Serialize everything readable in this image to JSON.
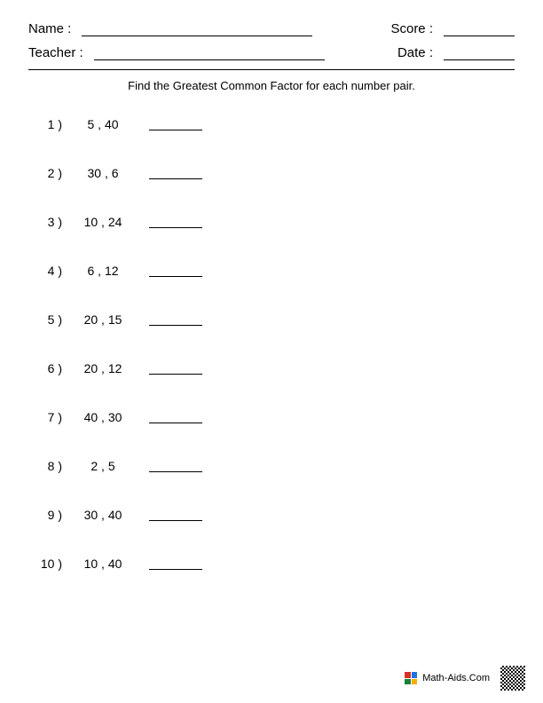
{
  "header": {
    "name_label": "Name :",
    "teacher_label": "Teacher :",
    "score_label": "Score :",
    "date_label": "Date :"
  },
  "instruction": "Find the Greatest Common Factor for each number pair.",
  "problems": [
    {
      "num": "1 )",
      "pair": "5  ,  40"
    },
    {
      "num": "2 )",
      "pair": "30  ,  6"
    },
    {
      "num": "3 )",
      "pair": "10  ,  24"
    },
    {
      "num": "4 )",
      "pair": "6  ,  12"
    },
    {
      "num": "5 )",
      "pair": "20  ,  15"
    },
    {
      "num": "6 )",
      "pair": "20  ,  12"
    },
    {
      "num": "7 )",
      "pair": "40  ,  30"
    },
    {
      "num": "8 )",
      "pair": "2  ,  5"
    },
    {
      "num": "9 )",
      "pair": "30  ,  40"
    },
    {
      "num": "10 )",
      "pair": "10  ,  40"
    }
  ],
  "footer": {
    "site": "Math-Aids.Com"
  }
}
